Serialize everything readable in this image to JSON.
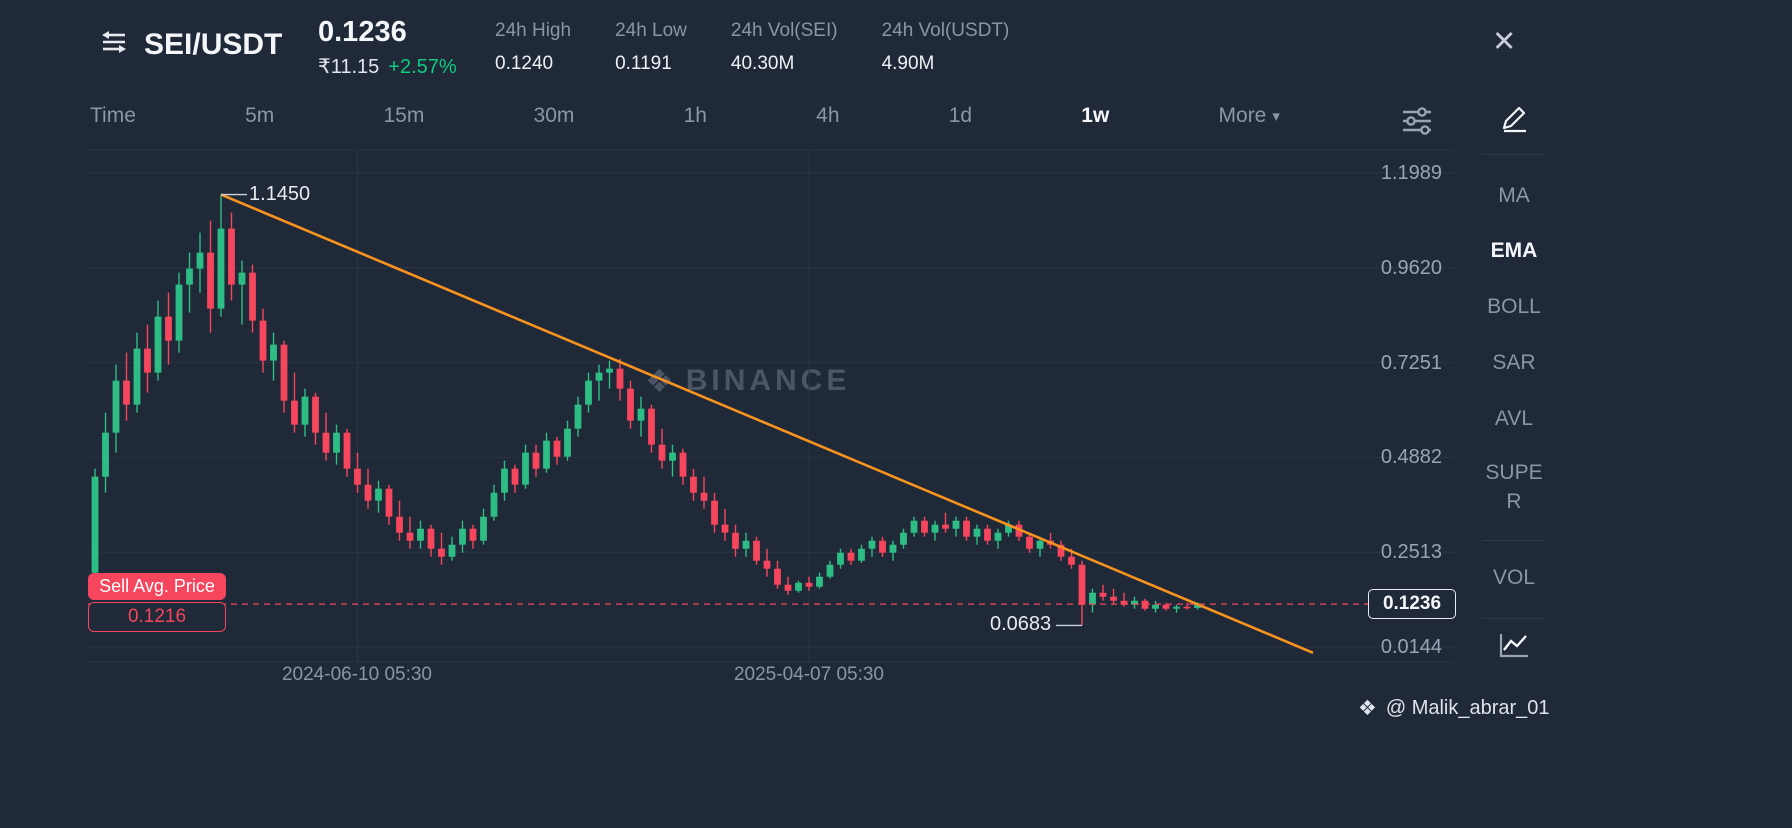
{
  "header": {
    "symbol": "SEI/USDT",
    "price": "0.1236",
    "fiat_price": "₹11.15",
    "change_percent": "+2.57%",
    "stats": [
      {
        "label": "24h High",
        "value": "0.1240"
      },
      {
        "label": "24h Low",
        "value": "0.1191"
      },
      {
        "label": "24h Vol(SEI)",
        "value": "40.30M"
      },
      {
        "label": "24h Vol(USDT)",
        "value": "4.90M"
      }
    ]
  },
  "icons": {
    "close": "✕",
    "caret_down": "▾",
    "diamond": "❖"
  },
  "toolbar": {
    "intervals": [
      {
        "label": "Time",
        "active": false
      },
      {
        "label": "5m",
        "active": false
      },
      {
        "label": "15m",
        "active": false
      },
      {
        "label": "30m",
        "active": false
      },
      {
        "label": "1h",
        "active": false
      },
      {
        "label": "4h",
        "active": false
      },
      {
        "label": "1d",
        "active": false
      },
      {
        "label": "1w",
        "active": true
      },
      {
        "label": "More",
        "active": false,
        "has_dropdown": true
      }
    ]
  },
  "sidebar": {
    "indicators": [
      {
        "label": "MA",
        "active": false
      },
      {
        "label": "EMA",
        "active": true
      },
      {
        "label": "BOLL",
        "active": false
      },
      {
        "label": "SAR",
        "active": false
      },
      {
        "label": "AVL",
        "active": false
      },
      {
        "label": "SUPER",
        "active": false
      },
      {
        "label": "VOL",
        "active": false
      }
    ]
  },
  "footer": {
    "credit": "@ Malik_abrar_01"
  },
  "colors": {
    "up": "#2ebd85",
    "down": "#f6465d",
    "trendline": "#f7931e",
    "accent_green": "#0ecb81",
    "accent_red": "#f6465d",
    "grid": "#2a3443"
  },
  "chart_data": {
    "type": "candlestick",
    "interval": "1w",
    "watermark_text": "BINANCE",
    "current_price": "0.1236",
    "sell_avg": {
      "label": "Sell Avg. Price",
      "value": "0.1216"
    },
    "y_ticks": [
      "1.1989",
      "0.9620",
      "0.7251",
      "0.4882",
      "0.2513",
      "0.0144"
    ],
    "x_ticks": [
      {
        "label": "2024-06-10 05:30",
        "candle": 25
      },
      {
        "label": "2025-04-07 05:30",
        "candle": 68
      }
    ],
    "annotations": [
      {
        "text": "1.1450",
        "price": 1.145,
        "candle": 12,
        "side": "right"
      },
      {
        "text": "0.0683",
        "price": 0.0683,
        "candle": 94,
        "side": "left"
      }
    ],
    "trendline": {
      "from_candle": 12,
      "from_price": 1.145,
      "to_candle": 116,
      "to_price": 0.0
    },
    "candles": [
      [
        0.2,
        0.46,
        0.17,
        0.44
      ],
      [
        0.44,
        0.6,
        0.4,
        0.55
      ],
      [
        0.55,
        0.72,
        0.5,
        0.68
      ],
      [
        0.68,
        0.75,
        0.58,
        0.62
      ],
      [
        0.62,
        0.8,
        0.6,
        0.76
      ],
      [
        0.76,
        0.82,
        0.65,
        0.7
      ],
      [
        0.7,
        0.88,
        0.68,
        0.84
      ],
      [
        0.84,
        0.9,
        0.72,
        0.78
      ],
      [
        0.78,
        0.95,
        0.75,
        0.92
      ],
      [
        0.92,
        1.0,
        0.85,
        0.96
      ],
      [
        0.96,
        1.05,
        0.9,
        1.0
      ],
      [
        1.0,
        1.08,
        0.8,
        0.86
      ],
      [
        0.86,
        1.145,
        0.84,
        1.06
      ],
      [
        1.06,
        1.1,
        0.88,
        0.92
      ],
      [
        0.92,
        0.98,
        0.82,
        0.95
      ],
      [
        0.95,
        0.97,
        0.8,
        0.83
      ],
      [
        0.83,
        0.86,
        0.7,
        0.73
      ],
      [
        0.73,
        0.8,
        0.68,
        0.77
      ],
      [
        0.77,
        0.78,
        0.6,
        0.63
      ],
      [
        0.63,
        0.7,
        0.55,
        0.57
      ],
      [
        0.57,
        0.66,
        0.54,
        0.64
      ],
      [
        0.64,
        0.65,
        0.52,
        0.55
      ],
      [
        0.55,
        0.6,
        0.48,
        0.5
      ],
      [
        0.5,
        0.57,
        0.47,
        0.55
      ],
      [
        0.55,
        0.56,
        0.44,
        0.46
      ],
      [
        0.46,
        0.5,
        0.4,
        0.42
      ],
      [
        0.42,
        0.46,
        0.36,
        0.38
      ],
      [
        0.38,
        0.43,
        0.35,
        0.41
      ],
      [
        0.41,
        0.42,
        0.32,
        0.34
      ],
      [
        0.34,
        0.38,
        0.28,
        0.3
      ],
      [
        0.3,
        0.34,
        0.26,
        0.28
      ],
      [
        0.28,
        0.33,
        0.26,
        0.31
      ],
      [
        0.31,
        0.32,
        0.24,
        0.26
      ],
      [
        0.26,
        0.3,
        0.22,
        0.24
      ],
      [
        0.24,
        0.29,
        0.23,
        0.27
      ],
      [
        0.27,
        0.33,
        0.25,
        0.31
      ],
      [
        0.31,
        0.32,
        0.26,
        0.28
      ],
      [
        0.28,
        0.36,
        0.27,
        0.34
      ],
      [
        0.34,
        0.42,
        0.33,
        0.4
      ],
      [
        0.4,
        0.48,
        0.38,
        0.46
      ],
      [
        0.46,
        0.47,
        0.4,
        0.42
      ],
      [
        0.42,
        0.52,
        0.41,
        0.5
      ],
      [
        0.5,
        0.52,
        0.44,
        0.46
      ],
      [
        0.46,
        0.55,
        0.45,
        0.53
      ],
      [
        0.53,
        0.54,
        0.47,
        0.49
      ],
      [
        0.49,
        0.58,
        0.48,
        0.56
      ],
      [
        0.56,
        0.64,
        0.54,
        0.62
      ],
      [
        0.62,
        0.7,
        0.6,
        0.68
      ],
      [
        0.68,
        0.72,
        0.63,
        0.7
      ],
      [
        0.7,
        0.73,
        0.66,
        0.71
      ],
      [
        0.71,
        0.735,
        0.63,
        0.66
      ],
      [
        0.66,
        0.68,
        0.56,
        0.58
      ],
      [
        0.58,
        0.64,
        0.54,
        0.61
      ],
      [
        0.61,
        0.62,
        0.5,
        0.52
      ],
      [
        0.52,
        0.56,
        0.46,
        0.48
      ],
      [
        0.48,
        0.52,
        0.44,
        0.5
      ],
      [
        0.5,
        0.51,
        0.42,
        0.44
      ],
      [
        0.44,
        0.46,
        0.38,
        0.4
      ],
      [
        0.4,
        0.44,
        0.36,
        0.38
      ],
      [
        0.38,
        0.4,
        0.3,
        0.32
      ],
      [
        0.32,
        0.36,
        0.28,
        0.3
      ],
      [
        0.3,
        0.32,
        0.24,
        0.26
      ],
      [
        0.26,
        0.3,
        0.24,
        0.28
      ],
      [
        0.28,
        0.29,
        0.22,
        0.23
      ],
      [
        0.23,
        0.26,
        0.19,
        0.21
      ],
      [
        0.21,
        0.23,
        0.16,
        0.17
      ],
      [
        0.17,
        0.19,
        0.145,
        0.155
      ],
      [
        0.155,
        0.18,
        0.15,
        0.175
      ],
      [
        0.175,
        0.19,
        0.155,
        0.165
      ],
      [
        0.165,
        0.2,
        0.16,
        0.19
      ],
      [
        0.19,
        0.23,
        0.185,
        0.22
      ],
      [
        0.22,
        0.26,
        0.21,
        0.25
      ],
      [
        0.25,
        0.26,
        0.22,
        0.23
      ],
      [
        0.23,
        0.27,
        0.225,
        0.26
      ],
      [
        0.26,
        0.29,
        0.24,
        0.28
      ],
      [
        0.28,
        0.29,
        0.24,
        0.25
      ],
      [
        0.25,
        0.28,
        0.23,
        0.27
      ],
      [
        0.27,
        0.31,
        0.26,
        0.3
      ],
      [
        0.3,
        0.34,
        0.29,
        0.33
      ],
      [
        0.33,
        0.34,
        0.29,
        0.3
      ],
      [
        0.3,
        0.33,
        0.28,
        0.32
      ],
      [
        0.32,
        0.35,
        0.3,
        0.31
      ],
      [
        0.31,
        0.34,
        0.29,
        0.33
      ],
      [
        0.33,
        0.34,
        0.28,
        0.29
      ],
      [
        0.29,
        0.32,
        0.27,
        0.31
      ],
      [
        0.31,
        0.32,
        0.27,
        0.28
      ],
      [
        0.28,
        0.31,
        0.26,
        0.3
      ],
      [
        0.3,
        0.33,
        0.29,
        0.32
      ],
      [
        0.32,
        0.33,
        0.28,
        0.29
      ],
      [
        0.29,
        0.3,
        0.25,
        0.26
      ],
      [
        0.26,
        0.29,
        0.24,
        0.28
      ],
      [
        0.28,
        0.3,
        0.26,
        0.27
      ],
      [
        0.27,
        0.28,
        0.23,
        0.24
      ],
      [
        0.24,
        0.26,
        0.21,
        0.22
      ],
      [
        0.22,
        0.23,
        0.0683,
        0.12
      ],
      [
        0.12,
        0.16,
        0.1,
        0.15
      ],
      [
        0.15,
        0.17,
        0.13,
        0.14
      ],
      [
        0.14,
        0.16,
        0.12,
        0.13
      ],
      [
        0.13,
        0.15,
        0.115,
        0.12
      ],
      [
        0.12,
        0.14,
        0.11,
        0.13
      ],
      [
        0.13,
        0.135,
        0.105,
        0.11
      ],
      [
        0.11,
        0.13,
        0.1,
        0.12
      ],
      [
        0.12,
        0.125,
        0.105,
        0.11
      ],
      [
        0.11,
        0.12,
        0.1,
        0.115
      ],
      [
        0.115,
        0.125,
        0.108,
        0.112
      ],
      [
        0.112,
        0.126,
        0.108,
        0.1236
      ]
    ]
  }
}
